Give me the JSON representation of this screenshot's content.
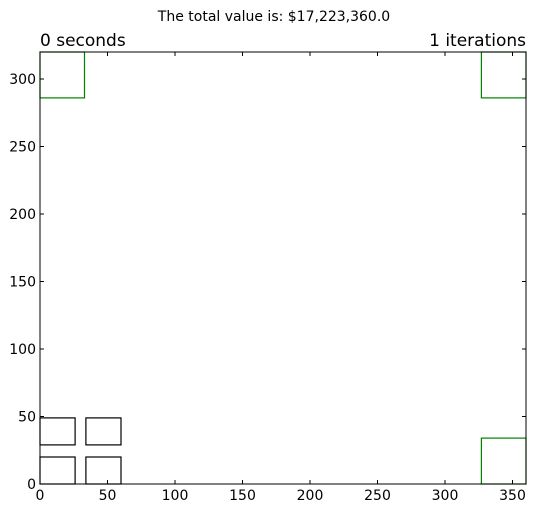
{
  "chart_data": {
    "type": "rectangles",
    "title": "The total value is: $17,223,360.0",
    "left_label": "0 seconds",
    "right_label": "1 iterations",
    "xlabel": "",
    "ylabel": "",
    "xlim": [
      0,
      360
    ],
    "ylim": [
      0,
      320
    ],
    "xticks": [
      0,
      50,
      100,
      150,
      200,
      250,
      300,
      350
    ],
    "yticks": [
      0,
      50,
      100,
      150,
      200,
      250,
      300
    ],
    "grid": false,
    "rectangles": [
      {
        "name": "green-top-left",
        "x": 0,
        "y": 286,
        "w": 33,
        "h": 34,
        "color": "#008000"
      },
      {
        "name": "green-top-right",
        "x": 327,
        "y": 286,
        "w": 33,
        "h": 34,
        "color": "#008000"
      },
      {
        "name": "green-bottom-right",
        "x": 327,
        "y": 0,
        "w": 33,
        "h": 34,
        "color": "#008000"
      },
      {
        "name": "black-box-1",
        "x": 0,
        "y": 0,
        "w": 26,
        "h": 20,
        "color": "#000000"
      },
      {
        "name": "black-box-2",
        "x": 34,
        "y": 0,
        "w": 26,
        "h": 20,
        "color": "#000000"
      },
      {
        "name": "black-box-3",
        "x": 0,
        "y": 29,
        "w": 26,
        "h": 20,
        "color": "#000000"
      },
      {
        "name": "black-box-4",
        "x": 34,
        "y": 29,
        "w": 26,
        "h": 20,
        "color": "#000000"
      }
    ]
  }
}
